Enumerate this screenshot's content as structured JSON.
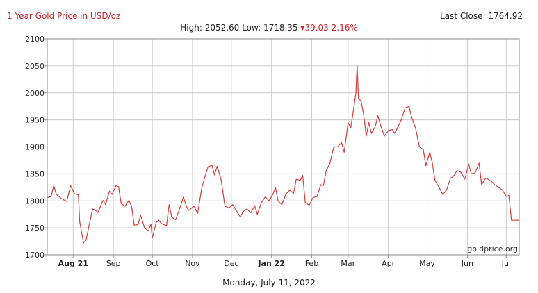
{
  "header": {
    "title": "1 Year Gold Price in USD/oz",
    "last_close": "Last Close: 1764.92",
    "high_low": "High: 2052.60 Low: 1718.35",
    "change": "▾39.03 2.16%"
  },
  "footer": {
    "date": "Monday, July 11, 2022"
  },
  "watermark": "goldprice.org",
  "colors": {
    "line": "#d83a3a",
    "title": "#c8262c",
    "grid": "#cccccc",
    "axis": "#888888"
  },
  "chart_data": {
    "type": "line",
    "title": "1 Year Gold Price in USD/oz",
    "xlabel": "",
    "ylabel": "",
    "ylim": [
      1700,
      2100
    ],
    "yticks": [
      1700,
      1750,
      1800,
      1850,
      1900,
      1950,
      2000,
      2050,
      2100
    ],
    "xlim": [
      "2021-07-12",
      "2022-07-11"
    ],
    "grid": true,
    "xticks": [
      {
        "date": "2021-08-01",
        "label": "Aug 21",
        "bold": true
      },
      {
        "date": "2021-09-01",
        "label": "Sep",
        "bold": false
      },
      {
        "date": "2021-10-01",
        "label": "Oct",
        "bold": false
      },
      {
        "date": "2021-11-01",
        "label": "Nov",
        "bold": false
      },
      {
        "date": "2021-12-01",
        "label": "Dec",
        "bold": false
      },
      {
        "date": "2022-01-01",
        "label": "Jan 22",
        "bold": true
      },
      {
        "date": "2022-02-01",
        "label": "Feb",
        "bold": false
      },
      {
        "date": "2022-03-01",
        "label": "Mar",
        "bold": false
      },
      {
        "date": "2022-04-01",
        "label": "Apr",
        "bold": false
      },
      {
        "date": "2022-05-01",
        "label": "May",
        "bold": false
      },
      {
        "date": "2022-06-01",
        "label": "Jun",
        "bold": false
      },
      {
        "date": "2022-07-01",
        "label": "Jul",
        "bold": false
      }
    ],
    "series": [
      {
        "name": "",
        "points": [
          [
            "2021-07-12",
            1806
          ],
          [
            "2021-07-15",
            1808
          ],
          [
            "2021-07-17",
            1828
          ],
          [
            "2021-07-19",
            1812
          ],
          [
            "2021-07-23",
            1804
          ],
          [
            "2021-07-27",
            1799
          ],
          [
            "2021-07-30",
            1828
          ],
          [
            "2021-08-02",
            1813
          ],
          [
            "2021-08-05",
            1811
          ],
          [
            "2021-08-06",
            1762
          ],
          [
            "2021-08-09",
            1722
          ],
          [
            "2021-08-11",
            1728
          ],
          [
            "2021-08-13",
            1752
          ],
          [
            "2021-08-16",
            1785
          ],
          [
            "2021-08-19",
            1781
          ],
          [
            "2021-08-20",
            1778
          ],
          [
            "2021-08-24",
            1801
          ],
          [
            "2021-08-26",
            1793
          ],
          [
            "2021-08-29",
            1818
          ],
          [
            "2021-08-31",
            1812
          ],
          [
            "2021-09-03",
            1828
          ],
          [
            "2021-09-05",
            1826
          ],
          [
            "2021-09-07",
            1795
          ],
          [
            "2021-09-10",
            1790
          ],
          [
            "2021-09-13",
            1801
          ],
          [
            "2021-09-15",
            1790
          ],
          [
            "2021-09-17",
            1755
          ],
          [
            "2021-09-20",
            1756
          ],
          [
            "2021-09-22",
            1773
          ],
          [
            "2021-09-25",
            1750
          ],
          [
            "2021-09-28",
            1744
          ],
          [
            "2021-09-30",
            1757
          ],
          [
            "2021-10-01",
            1731
          ],
          [
            "2021-10-04",
            1760
          ],
          [
            "2021-10-06",
            1764
          ],
          [
            "2021-10-08",
            1758
          ],
          [
            "2021-10-12",
            1754
          ],
          [
            "2021-10-14",
            1793
          ],
          [
            "2021-10-16",
            1770
          ],
          [
            "2021-10-19",
            1765
          ],
          [
            "2021-10-22",
            1785
          ],
          [
            "2021-10-25",
            1807
          ],
          [
            "2021-10-27",
            1792
          ],
          [
            "2021-10-29",
            1782
          ],
          [
            "2021-11-02",
            1790
          ],
          [
            "2021-11-05",
            1777
          ],
          [
            "2021-11-08",
            1822
          ],
          [
            "2021-11-11",
            1848
          ],
          [
            "2021-11-13",
            1863
          ],
          [
            "2021-11-16",
            1866
          ],
          [
            "2021-11-18",
            1848
          ],
          [
            "2021-11-20",
            1864
          ],
          [
            "2021-11-23",
            1840
          ],
          [
            "2021-11-26",
            1790
          ],
          [
            "2021-11-29",
            1787
          ],
          [
            "2021-12-02",
            1793
          ],
          [
            "2021-12-05",
            1781
          ],
          [
            "2021-12-08",
            1770
          ],
          [
            "2021-12-10",
            1780
          ],
          [
            "2021-12-13",
            1785
          ],
          [
            "2021-12-16",
            1778
          ],
          [
            "2021-12-19",
            1791
          ],
          [
            "2021-12-21",
            1775
          ],
          [
            "2021-12-24",
            1796
          ],
          [
            "2021-12-27",
            1807
          ],
          [
            "2021-12-30",
            1800
          ],
          [
            "2022-01-02",
            1812
          ],
          [
            "2022-01-04",
            1825
          ],
          [
            "2022-01-06",
            1800
          ],
          [
            "2022-01-09",
            1793
          ],
          [
            "2022-01-12",
            1812
          ],
          [
            "2022-01-15",
            1820
          ],
          [
            "2022-01-18",
            1814
          ],
          [
            "2022-01-20",
            1840
          ],
          [
            "2022-01-23",
            1838
          ],
          [
            "2022-01-25",
            1847
          ],
          [
            "2022-01-27",
            1797
          ],
          [
            "2022-01-30",
            1792
          ],
          [
            "2022-02-02",
            1806
          ],
          [
            "2022-02-05",
            1808
          ],
          [
            "2022-02-08",
            1830
          ],
          [
            "2022-02-10",
            1828
          ],
          [
            "2022-02-12",
            1855
          ],
          [
            "2022-02-15",
            1870
          ],
          [
            "2022-02-18",
            1900
          ],
          [
            "2022-02-21",
            1900
          ],
          [
            "2022-02-24",
            1908
          ],
          [
            "2022-02-26",
            1890
          ],
          [
            "2022-03-01",
            1945
          ],
          [
            "2022-03-03",
            1935
          ],
          [
            "2022-03-05",
            1965
          ],
          [
            "2022-03-07",
            2000
          ],
          [
            "2022-03-08",
            2052
          ],
          [
            "2022-03-09",
            1990
          ],
          [
            "2022-03-11",
            1985
          ],
          [
            "2022-03-13",
            1960
          ],
          [
            "2022-03-15",
            1920
          ],
          [
            "2022-03-17",
            1945
          ],
          [
            "2022-03-19",
            1925
          ],
          [
            "2022-03-22",
            1938
          ],
          [
            "2022-03-24",
            1958
          ],
          [
            "2022-03-26",
            1940
          ],
          [
            "2022-03-29",
            1920
          ],
          [
            "2022-04-01",
            1930
          ],
          [
            "2022-04-04",
            1932
          ],
          [
            "2022-04-06",
            1925
          ],
          [
            "2022-04-08",
            1935
          ],
          [
            "2022-04-11",
            1950
          ],
          [
            "2022-04-14",
            1972
          ],
          [
            "2022-04-17",
            1975
          ],
          [
            "2022-04-19",
            1955
          ],
          [
            "2022-04-22",
            1935
          ],
          [
            "2022-04-25",
            1900
          ],
          [
            "2022-04-28",
            1895
          ],
          [
            "2022-04-30",
            1865
          ],
          [
            "2022-05-03",
            1890
          ],
          [
            "2022-05-05",
            1870
          ],
          [
            "2022-05-07",
            1838
          ],
          [
            "2022-05-10",
            1826
          ],
          [
            "2022-05-13",
            1812
          ],
          [
            "2022-05-16",
            1820
          ],
          [
            "2022-05-19",
            1842
          ],
          [
            "2022-05-21",
            1845
          ],
          [
            "2022-05-24",
            1856
          ],
          [
            "2022-05-27",
            1853
          ],
          [
            "2022-05-30",
            1840
          ],
          [
            "2022-06-02",
            1868
          ],
          [
            "2022-06-04",
            1850
          ],
          [
            "2022-06-07",
            1852
          ],
          [
            "2022-06-10",
            1870
          ],
          [
            "2022-06-12",
            1830
          ],
          [
            "2022-06-15",
            1842
          ],
          [
            "2022-06-17",
            1840
          ],
          [
            "2022-06-20",
            1835
          ],
          [
            "2022-06-22",
            1830
          ],
          [
            "2022-06-25",
            1825
          ],
          [
            "2022-06-28",
            1820
          ],
          [
            "2022-07-01",
            1808
          ],
          [
            "2022-07-03",
            1810
          ],
          [
            "2022-07-05",
            1764
          ],
          [
            "2022-07-11",
            1764
          ]
        ]
      }
    ]
  }
}
